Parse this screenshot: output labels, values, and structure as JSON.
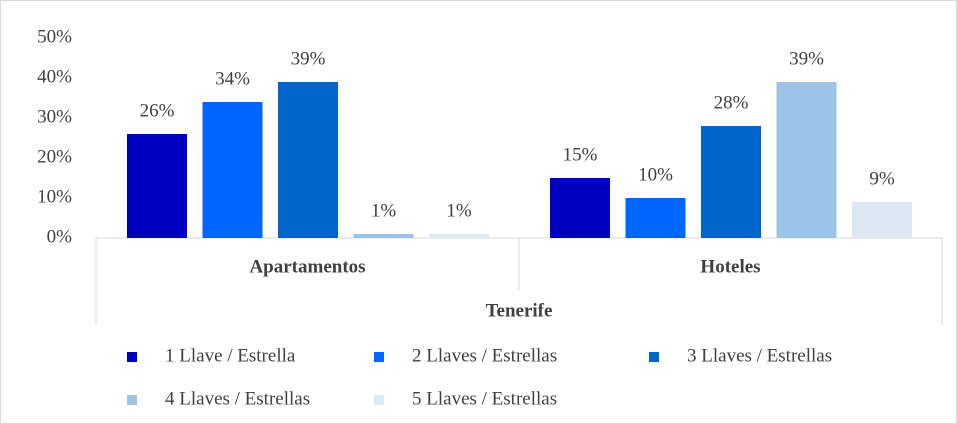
{
  "chart_data": {
    "type": "bar",
    "categories": [
      "Apartamentos",
      "Hoteles"
    ],
    "group_label": "Tenerife",
    "series": [
      {
        "name": "1 Llave / Estrella",
        "color": "#0000c0",
        "values": [
          26,
          15
        ],
        "value_labels": [
          "26%",
          "15%"
        ]
      },
      {
        "name": "2 Llaves / Estrellas",
        "color": "#0066ff",
        "values": [
          34,
          10
        ],
        "value_labels": [
          "34%",
          "10%"
        ]
      },
      {
        "name": "3 Llaves / Estrellas",
        "color": "#0066cc",
        "values": [
          39,
          28
        ],
        "value_labels": [
          "39%",
          "28%"
        ]
      },
      {
        "name": "4 Llaves / Estrellas",
        "color": "#9dc3e6",
        "values": [
          1,
          39
        ],
        "value_labels": [
          "1%",
          "39%"
        ]
      },
      {
        "name": "5 Llaves / Estrellas",
        "color": "#dde8f5",
        "values": [
          1,
          9
        ],
        "value_labels": [
          "1%",
          "9%"
        ]
      }
    ],
    "ylim": [
      0,
      50
    ],
    "yticks": [
      {
        "value": 0,
        "label": "0%"
      },
      {
        "value": 10,
        "label": "10%"
      },
      {
        "value": 20,
        "label": "20%"
      },
      {
        "value": 30,
        "label": "30%"
      },
      {
        "value": 40,
        "label": "40%"
      },
      {
        "value": 50,
        "label": "50%"
      }
    ],
    "grid": false,
    "legend": "bottom"
  }
}
